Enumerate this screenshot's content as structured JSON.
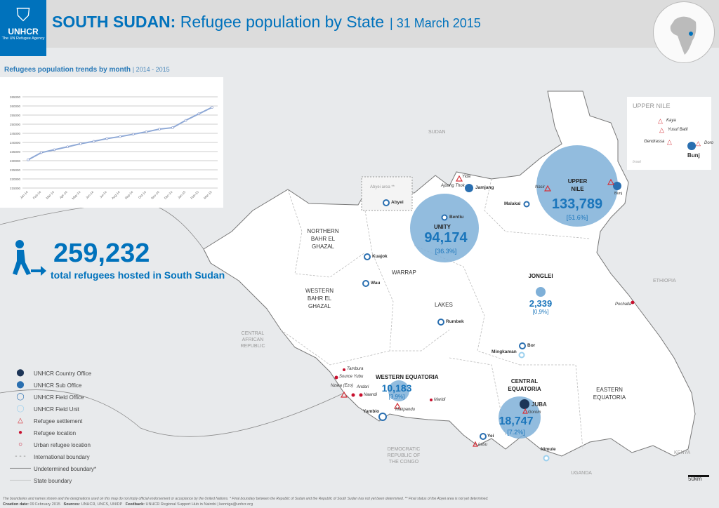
{
  "header": {
    "org": "UNHCR",
    "org_sub": "The UN Refugee Agency",
    "title_bold": "SOUTH SUDAN:",
    "title_rest": " Refugee population by State",
    "date": "| 31 March 2015"
  },
  "chart": {
    "title": "Refugees population trends by month",
    "range": "| 2014 - 2015"
  },
  "chart_data": {
    "type": "line",
    "title": "Refugees population trends by month",
    "xlabel": "",
    "ylabel": "",
    "categories": [
      "Jan-14",
      "Feb-14",
      "Mar-14",
      "Apr-14",
      "May-14",
      "Jun-14",
      "Jul-14",
      "Aug-14",
      "Sep-14",
      "Oct-14",
      "Nov-14",
      "Dec-14",
      "Jan-15",
      "Feb-15",
      "Mar-15"
    ],
    "values": [
      230500,
      234400,
      236000,
      237600,
      239300,
      240600,
      242100,
      243200,
      244500,
      245800,
      247300,
      248100,
      252100,
      255700,
      259232
    ],
    "ylim": [
      215000,
      265000
    ],
    "yticks": [
      265000,
      260000,
      255000,
      250000,
      245000,
      240000,
      235000,
      230000,
      225000,
      220000,
      215000
    ],
    "grid": true,
    "color": "#8fa9d6"
  },
  "total": {
    "number": "259,232",
    "label": "total refugees hosted in South Sudan"
  },
  "legend": [
    {
      "icon": "country-office",
      "label": "UNHCR Country Office"
    },
    {
      "icon": "sub-office",
      "label": "UNHCR Sub Office"
    },
    {
      "icon": "field-office",
      "label": "UNHCR Field Office"
    },
    {
      "icon": "field-unit",
      "label": "UNHCR Field Unit"
    },
    {
      "icon": "settlement",
      "label": "Refugee settlement"
    },
    {
      "icon": "refugee-location",
      "label": "Refugee location"
    },
    {
      "icon": "urban-location",
      "label": "Urban refugee location"
    },
    {
      "icon": "international-boundary",
      "label": "International boundary"
    },
    {
      "icon": "undetermined-boundary",
      "label": "Undetermined boundary*"
    },
    {
      "icon": "state-boundary",
      "label": "State boundary"
    }
  ],
  "states": {
    "upper_nile": {
      "name": "UPPER NILE",
      "value": "133,789",
      "pct": "[51.6%]"
    },
    "unity": {
      "name": "UNITY",
      "value": "94,174",
      "pct": "[36.3%]"
    },
    "jonglei": {
      "name": "JONGLEI",
      "value": "2,339",
      "pct": "[0,9%]"
    },
    "western_equatoria": {
      "name": "WESTERN EQUATORIA",
      "value": "10,183",
      "pct": "[3.9%]"
    },
    "central_equatoria": {
      "name": "CENTRAL EQUATORIA",
      "value": "18,747",
      "pct": "[7.2%]"
    },
    "nbg": "NORTHERN BAHR EL GHAZAL",
    "wbg": "WESTERN BAHR EL GHAZAL",
    "warrap": "WARRAP",
    "lakes": "LAKES",
    "eastern_equatoria": "EASTERN EQUATORIA",
    "abyei_area": "Abyei area **"
  },
  "countries": {
    "sudan": "SUDAN",
    "ethiopia": "ETHIOPIA",
    "car": "CENTRAL AFRICAN REPUBLIC",
    "drc": "DEMOCRATIC REPUBLIC OF THE CONGO",
    "uganda": "UGANDA",
    "kenya": "KENYA"
  },
  "towns": {
    "abyei": "Abyei",
    "bentiu": "Bentiu",
    "yida": "Yida",
    "ajoung": "Ajuong Thok",
    "jamjang": "Jamjang",
    "malakal": "Malakal",
    "nasir": "Nasir",
    "bunj": "Bunj",
    "kuajok": "Kuajok",
    "wau": "Wau",
    "rumbek": "Rumbek",
    "bor": "Bor",
    "mingkaman": "Mingkaman",
    "pochalla": "Pochalla",
    "juba": "JUBA",
    "gorom": "Gorom",
    "yei": "Yei",
    "lasu": "Lasu",
    "nimule": "Nimule",
    "yambio": "Yambio",
    "makpandu": "Makpandu",
    "maridi": "Maridi",
    "tambura": "Tambura",
    "source_yubu": "Source Yubu",
    "nzara": "Nzara (Ezo)",
    "andari": "Andari",
    "naandi": "Naandi"
  },
  "inset": {
    "title": "UPPER NILE",
    "kaya": "Kaya",
    "yusuf": "Yusuf Batil",
    "gendrassa": "Gendrassa",
    "doro": "Doro",
    "bunj": "Bunj",
    "label": "Inset"
  },
  "scale": "50km",
  "footer": {
    "disclaimer": "The boundaries and names shown and the designations used on this map do not imply official endorsement or acceptance by the United Nations. * Final boundary between the Republic of Sudan and the Republic of South Sudan has not yet been determined. ** Final status of the Abyei area is not yet determined.",
    "creation_label": "Creation date:",
    "creation": "09 February 2015",
    "sources_label": "Sources:",
    "sources": "UNHCR, UNCS, UNIDP",
    "feedback_label": "Feedback:",
    "feedback": "UNHCR Regional Support Hub in Nairobi | kenniga@unhcr.org"
  },
  "colors": {
    "brand": "#0072bc",
    "bubble": "#7fb0d8",
    "settlement": "#d6323a"
  }
}
